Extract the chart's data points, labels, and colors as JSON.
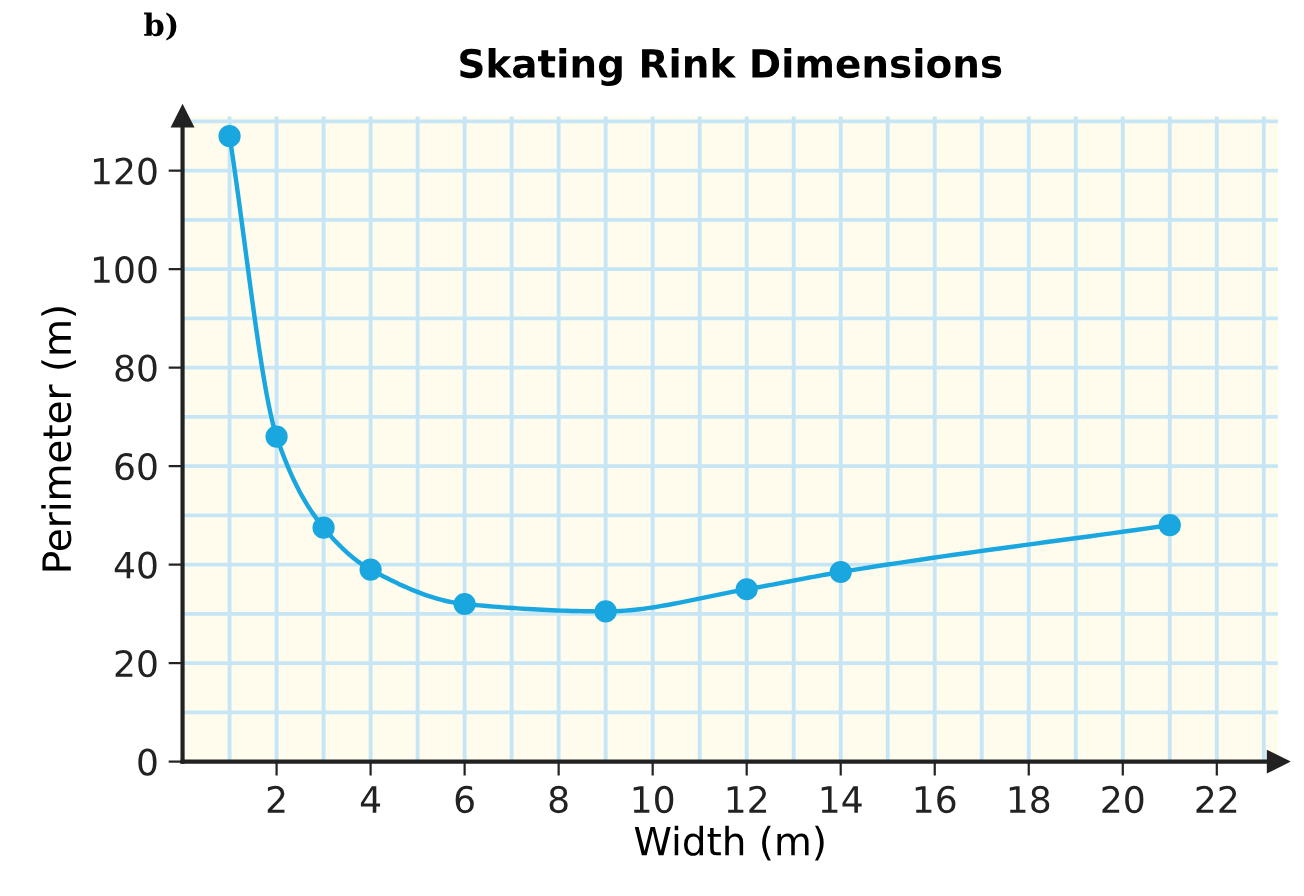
{
  "chart_data": {
    "type": "line",
    "title": "Skating Rink Dimensions",
    "xlabel": "Width (m)",
    "ylabel": "Perimeter (m)",
    "annotations": [
      "b)"
    ],
    "x": [
      1,
      2,
      3,
      4,
      6,
      9,
      12,
      14,
      21
    ],
    "series": [
      {
        "color": "#1aa7e0",
        "values": [
          127,
          66,
          47.5,
          39,
          32,
          30.5,
          35,
          38.5,
          48
        ]
      }
    ],
    "xlim": [
      0,
      23.3
    ],
    "ylim": [
      0,
      131
    ],
    "xticks": [
      2,
      4,
      6,
      8,
      10,
      12,
      14,
      16,
      18,
      20,
      22
    ],
    "yticks": [
      0,
      20,
      40,
      60,
      80,
      100,
      120
    ],
    "grid": true,
    "marker": "circle",
    "line_style": "solid"
  }
}
